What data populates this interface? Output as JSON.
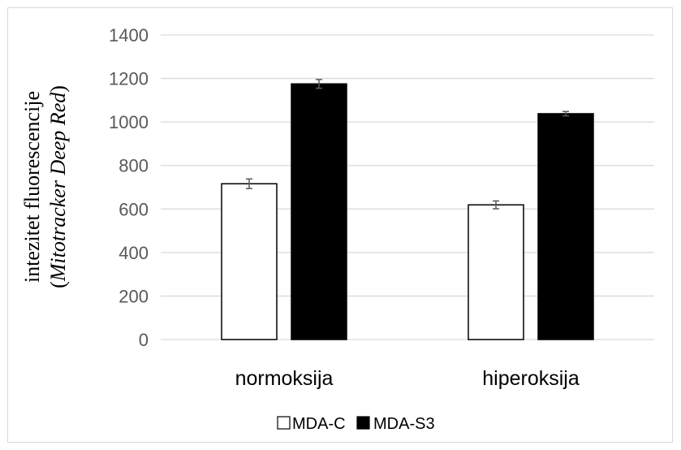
{
  "chart_data": {
    "type": "bar",
    "categories": [
      "normoksija",
      "hiperoksija"
    ],
    "series": [
      {
        "name": "MDA-C",
        "values": [
          716,
          619
        ],
        "errors": [
          22,
          18
        ],
        "fill": "#ffffff",
        "stroke": "#000000"
      },
      {
        "name": "MDA-S3",
        "values": [
          1175,
          1038
        ],
        "errors": [
          20,
          10
        ],
        "fill": "#000000",
        "stroke": "#000000"
      }
    ],
    "ylabel_line1": "intezitet fluorescencije",
    "ylabel_line2_prefix": "(",
    "ylabel_line2_italic": "Mitotracker Deep Red",
    "ylabel_line2_suffix": ")",
    "ylim": [
      0,
      1400
    ],
    "yticks": [
      0,
      200,
      400,
      600,
      800,
      1000,
      1200,
      1400
    ],
    "grid": true,
    "legend_position": "bottom",
    "colors": {
      "grid": "#d9d9d9",
      "axis": "#d9d9d9",
      "tick_text": "#595959",
      "error_bar": "#595959"
    }
  }
}
